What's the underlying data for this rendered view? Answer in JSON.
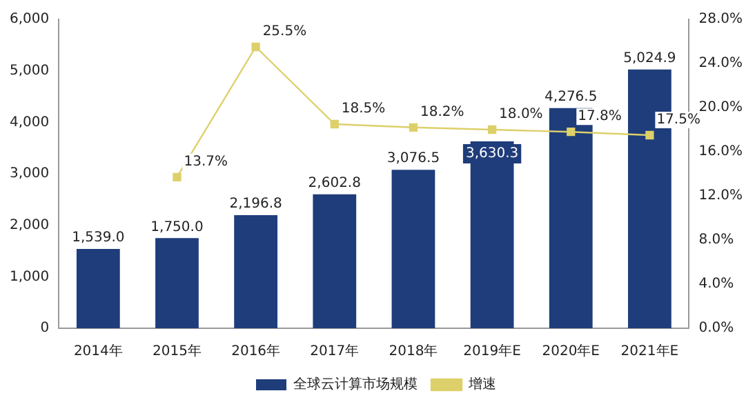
{
  "chart_data": {
    "type": "bar",
    "categories": [
      "2014年",
      "2015年",
      "2016年",
      "2017年",
      "2018年",
      "2019年E",
      "2020年E",
      "2021年E"
    ],
    "series": [
      {
        "name": "全球云计算市场规模",
        "color": "#1f3d7a",
        "values": [
          1539.0,
          1750.0,
          2196.8,
          2602.8,
          3076.5,
          3630.3,
          4276.5,
          5024.9
        ],
        "value_labels": [
          "1,539.0",
          "1,750.0",
          "2,196.8",
          "2,602.8",
          "3,076.5",
          "3,630.3",
          "4,276.5",
          "5,024.9"
        ]
      },
      {
        "name": "增速",
        "type": "line",
        "axis": "y2",
        "color": "#ddd06a",
        "values": [
          null,
          13.7,
          25.5,
          18.5,
          18.2,
          18.0,
          17.8,
          17.5
        ],
        "value_labels": [
          null,
          "13.7%",
          "25.5%",
          "18.5%",
          "18.2%",
          "18.0%",
          "17.8%",
          "17.5%"
        ]
      }
    ],
    "ylim": [
      0,
      6000
    ],
    "yticks": [
      {
        "value": 0,
        "label": "0"
      },
      {
        "value": 1000,
        "label": "1,000"
      },
      {
        "value": 2000,
        "label": "2,000"
      },
      {
        "value": 3000,
        "label": "3,000"
      },
      {
        "value": 4000,
        "label": "4,000"
      },
      {
        "value": 5000,
        "label": "5,000"
      },
      {
        "value": 6000,
        "label": "6,000"
      }
    ],
    "y2lim": [
      0,
      28
    ],
    "y2ticks": [
      {
        "value": 0,
        "label": "0.0%"
      },
      {
        "value": 4,
        "label": "4.0%"
      },
      {
        "value": 8,
        "label": "8.0%"
      },
      {
        "value": 12,
        "label": "12.0%"
      },
      {
        "value": 16,
        "label": "16.0%"
      },
      {
        "value": 20,
        "label": "20.0%"
      },
      {
        "value": 24,
        "label": "24.0%"
      },
      {
        "value": 28,
        "label": "28.0%"
      }
    ],
    "grid": false,
    "legend": "bottom",
    "marker": "square",
    "line_style": "solid"
  }
}
